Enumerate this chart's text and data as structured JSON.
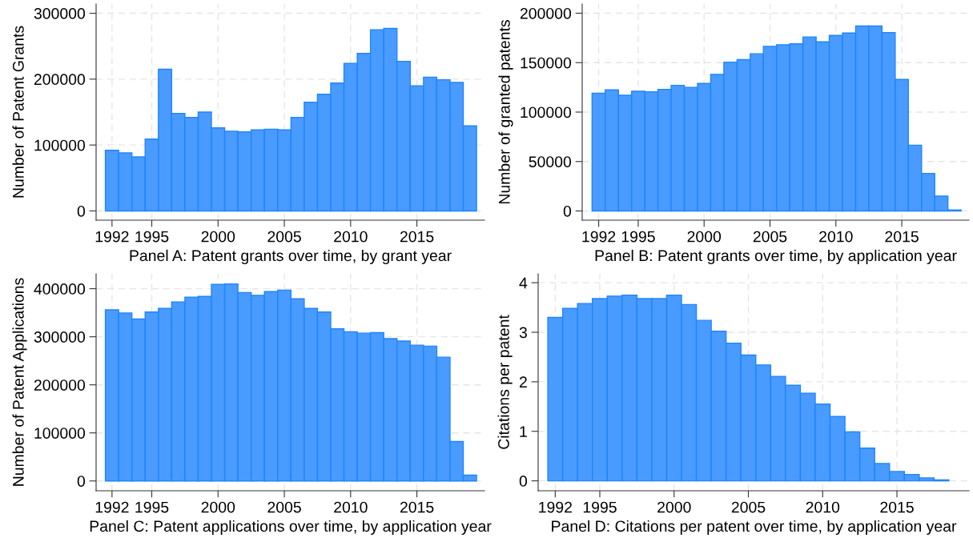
{
  "chart_data": [
    {
      "type": "histogram",
      "xlabel": "Panel A: Patent grants over time, by grant year",
      "ylabel": "Number of Patent Grants",
      "color": "#4a9bff",
      "bins": [
        1991.5,
        1992.5,
        1993.5,
        1994.5,
        1995.5,
        1996.5,
        1997.5,
        1998.5,
        1999.5,
        2000.5,
        2001.5,
        2002.5,
        2003.5,
        2004.5,
        2005.5,
        2006.5,
        2007.5,
        2008.5,
        2009.5,
        2010.5,
        2011.5,
        2012.5,
        2013.5,
        2014.5,
        2015.5,
        2016.5,
        2017.5,
        2018.5,
        2019.5
      ],
      "values": [
        92000,
        88000,
        82000,
        109000,
        215000,
        148000,
        142000,
        150000,
        126000,
        121000,
        120000,
        123000,
        124000,
        123000,
        142000,
        165000,
        177000,
        194000,
        224000,
        239000,
        275000,
        277000,
        227000,
        190000,
        203000,
        199000,
        195000,
        129000
      ],
      "xlim": [
        1990.8,
        2020.1
      ],
      "xticks": [
        1992,
        1995,
        2000,
        2005,
        2010,
        2015
      ],
      "ylim": [
        -14000,
        314000
      ],
      "yticks": [
        0,
        100000,
        200000,
        300000
      ],
      "grid": true
    },
    {
      "type": "histogram",
      "xlabel": "Panel B: Patent grants over time, by application year",
      "ylabel": "Number of granted patents",
      "color": "#4a9bff",
      "bins": [
        1991.5,
        1992.5,
        1993.5,
        1994.5,
        1995.5,
        1996.5,
        1997.5,
        1998.5,
        1999.5,
        2000.5,
        2001.5,
        2002.5,
        2003.5,
        2004.5,
        2005.5,
        2006.5,
        2007.5,
        2008.5,
        2009.5,
        2010.5,
        2011.5,
        2012.5,
        2013.5,
        2014.5,
        2015.5,
        2016.5,
        2017.5,
        2018.5,
        2019.5
      ],
      "values": [
        119000,
        122500,
        117000,
        121000,
        120500,
        123000,
        127000,
        125000,
        129000,
        138000,
        150500,
        153000,
        159000,
        166500,
        168000,
        169000,
        176000,
        171000,
        177500,
        180000,
        187000,
        187000,
        180500,
        133000,
        66500,
        38000,
        15000,
        1000
      ],
      "xlim": [
        1990.75,
        2020.1
      ],
      "xticks": [
        1992,
        1995,
        2000,
        2005,
        2010,
        2015
      ],
      "ylim": [
        -9300,
        209300
      ],
      "yticks": [
        0,
        50000,
        100000,
        150000,
        200000
      ],
      "grid": true
    },
    {
      "type": "histogram",
      "xlabel": "Panel C: Patent applications over time, by application year",
      "ylabel": "Number of Patent Applications",
      "color": "#4a9bff",
      "bins": [
        1991.5,
        1992.5,
        1993.5,
        1994.5,
        1995.5,
        1996.5,
        1997.5,
        1998.5,
        1999.5,
        2000.5,
        2001.5,
        2002.5,
        2003.5,
        2004.5,
        2005.5,
        2006.5,
        2007.5,
        2008.5,
        2009.5,
        2010.5,
        2011.5,
        2012.5,
        2013.5,
        2014.5,
        2015.5,
        2016.5,
        2017.5,
        2018.5,
        2019.5
      ],
      "values": [
        356000,
        349500,
        337000,
        351500,
        359000,
        372500,
        382500,
        384000,
        409000,
        410000,
        392000,
        386000,
        394000,
        397000,
        379000,
        359000,
        351500,
        316500,
        310500,
        307500,
        308500,
        296000,
        291000,
        282500,
        280500,
        257500,
        82000,
        12000
      ],
      "xlim": [
        1990.8,
        2020.1
      ],
      "xticks": [
        1992,
        1995,
        2000,
        2005,
        2010,
        2015
      ],
      "ylim": [
        -20400,
        431000
      ],
      "yticks": [
        0,
        100000,
        200000,
        300000,
        400000
      ],
      "grid": true
    },
    {
      "type": "histogram",
      "xlabel": "Panel D: Citations per patent over time, by application year",
      "ylabel": "Citations per patent",
      "color": "#4a9bff",
      "bins": [
        1991.5,
        1992.5,
        1993.5,
        1994.5,
        1995.5,
        1996.5,
        1997.5,
        1998.5,
        1999.5,
        2000.5,
        2001.5,
        2002.5,
        2003.5,
        2004.5,
        2005.5,
        2006.5,
        2007.5,
        2008.5,
        2009.5,
        2010.5,
        2011.5,
        2012.5,
        2013.5,
        2014.5,
        2015.5,
        2016.5,
        2017.5,
        2018.5
      ],
      "values": [
        3.3,
        3.48,
        3.58,
        3.68,
        3.73,
        3.75,
        3.68,
        3.68,
        3.75,
        3.56,
        3.24,
        3.02,
        2.78,
        2.54,
        2.34,
        2.11,
        1.93,
        1.77,
        1.55,
        1.3,
        0.99,
        0.66,
        0.35,
        0.19,
        0.13,
        0.06,
        0.02
      ],
      "xlim": [
        1990.85,
        2019.85
      ],
      "xticks": [
        1992,
        1995,
        2000,
        2005,
        2010,
        2015
      ],
      "ylim": [
        -0.2,
        4.18
      ],
      "yticks": [
        0,
        1,
        2,
        3,
        4
      ],
      "grid": true
    }
  ]
}
